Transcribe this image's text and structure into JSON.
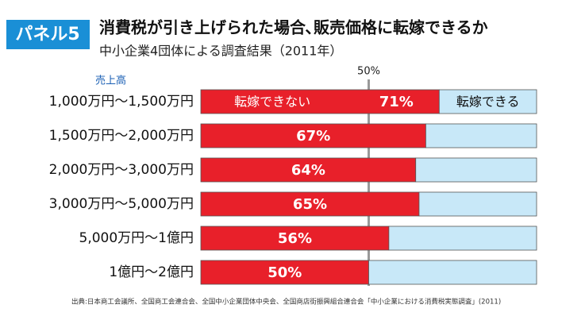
{
  "chart_data": {
    "type": "stacked_barh",
    "panel_label": "パネル5",
    "title": "消費税が引き上げられた場合､販売価格に転嫁できるか",
    "subtitle": "中小企業4団体による調査結果（2011年）",
    "y_axis_label": "売上高",
    "categories": [
      "1,000万円〜1,500万円",
      "1,500万円〜2,000万円",
      "2,000万円〜3,000万円",
      "3,000万円〜5,000万円",
      "5,000万円〜1億円",
      "1億円〜2億円"
    ],
    "series": [
      {
        "name": "転嫁できない",
        "color": "#e8202a",
        "values": [
          71,
          67,
          64,
          65,
          56,
          50
        ],
        "value_labels": [
          "71%",
          "67%",
          "64%",
          "65%",
          "56%",
          "50%"
        ]
      },
      {
        "name": "転嫁できる",
        "color": "#c8e8f8",
        "values": [
          29,
          33,
          36,
          35,
          44,
          50
        ]
      }
    ],
    "xlim": [
      0,
      100
    ],
    "reference_line": {
      "value": 50,
      "label": "50%"
    },
    "source": "出典:日本商工会議所、全国商工会連合会、全国中小企業団体中央会、全国商店街振興組合連合会「中小企業における消費税実態調査」(2011)"
  }
}
